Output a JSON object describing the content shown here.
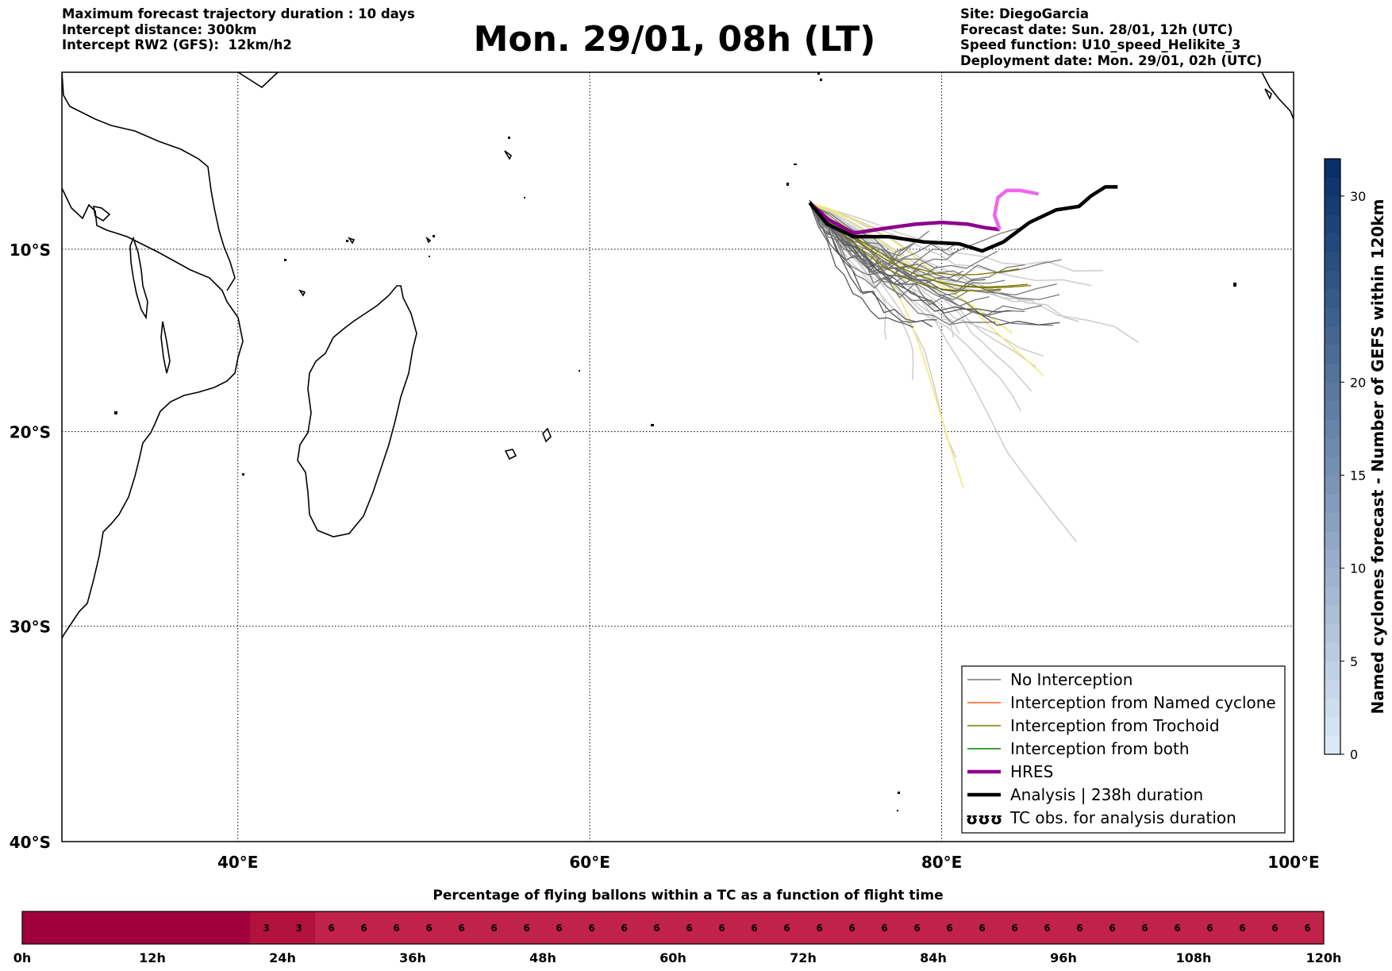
{
  "header": {
    "left": [
      "Maximum forecast trajectory duration : 10 days",
      "Intercept distance: 300km",
      "Intercept RW2 (GFS):  12km/h2"
    ],
    "title": "Mon. 29/01, 08h (LT)",
    "right": [
      "Site: DiegoGarcia",
      "Forecast date: Sun. 28/01, 12h (UTC)",
      "Speed function: U10_speed_Helikite_3",
      "Deployment date: Mon. 29/01, 02h (UTC)"
    ]
  },
  "map": {
    "lon_range": [
      30,
      100
    ],
    "lat_range": [
      -40,
      0
    ],
    "lon_ticks": [
      {
        "value": 40,
        "label": "40°E"
      },
      {
        "value": 60,
        "label": "60°E"
      },
      {
        "value": 80,
        "label": "80°E"
      },
      {
        "value": 100,
        "label": "100°E"
      }
    ],
    "lat_ticks": [
      {
        "value": -10,
        "label": "10°S"
      },
      {
        "value": -20,
        "label": "20°S"
      },
      {
        "value": -30,
        "label": "30°S"
      },
      {
        "value": -40,
        "label": "40°S"
      }
    ],
    "gridlines": "dotted",
    "legend": {
      "position": "lower-right",
      "entries": [
        {
          "label": "No Interception",
          "color": "#777777",
          "style": "thin"
        },
        {
          "label": "Interception from Named cyclone",
          "color": "#ff5a1e",
          "style": "thin"
        },
        {
          "label": "Interception from Trochoid",
          "color": "#7a7a00",
          "style": "thin"
        },
        {
          "label": "Interception from both",
          "color": "#008000",
          "style": "thin"
        },
        {
          "label": "HRES",
          "color": "#8b008b",
          "style": "thick"
        },
        {
          "label": "Analysis | 238h duration",
          "color": "#000000",
          "style": "thick"
        },
        {
          "label": "TC obs. for analysis duration",
          "color": "#000000",
          "style": "symbol",
          "symbol": "ʊʊʊ"
        }
      ]
    }
  },
  "colorbar": {
    "label": "Named cyclones forecast - Number of GEFS within 120km",
    "min": 0,
    "max": 32,
    "ticks": [
      0,
      5,
      10,
      15,
      20,
      30
    ],
    "color_low": "#dbe9f6",
    "color_high": "#08306b"
  },
  "bottom_bar": {
    "title": "Percentage of flying ballons within a TC as a function of flight time",
    "time_ticks": [
      "0h",
      "12h",
      "24h",
      "36h",
      "48h",
      "60h",
      "72h",
      "84h",
      "96h",
      "108h",
      "120h"
    ],
    "cells": [
      0,
      0,
      0,
      0,
      0,
      0,
      0,
      3,
      3,
      6,
      6,
      6,
      6,
      6,
      6,
      6,
      6,
      6,
      6,
      6,
      6,
      6,
      6,
      6,
      6,
      6,
      6,
      6,
      6,
      6,
      6,
      6,
      6,
      6,
      6,
      6,
      6,
      6,
      6,
      6
    ],
    "colors": {
      "0": "#a0003c",
      "3": "#b3123f",
      "6": "#c0224a"
    }
  },
  "chart_data": {
    "type": "map",
    "title": "Mon. 29/01, 08h (LT)",
    "series": [
      {
        "name": "Analysis | 238h duration",
        "points": [
          [
            72.5,
            -7.4
          ],
          [
            73.5,
            -8.6
          ],
          [
            75,
            -9.3
          ],
          [
            77,
            -9.3
          ],
          [
            79,
            -9.6
          ],
          [
            81,
            -9.7
          ],
          [
            82.3,
            -10.1
          ],
          [
            83.5,
            -9.6
          ],
          [
            85,
            -8.5
          ],
          [
            86.5,
            -7.8
          ],
          [
            87.8,
            -7.6
          ],
          [
            88.5,
            -7.0
          ],
          [
            89.3,
            -6.5
          ],
          [
            90,
            -6.5
          ]
        ]
      },
      {
        "name": "HRES",
        "points": [
          [
            72.5,
            -7.4
          ],
          [
            73.5,
            -8.3
          ],
          [
            75,
            -9.1
          ],
          [
            77,
            -8.8
          ],
          [
            78.5,
            -8.6
          ],
          [
            80,
            -8.5
          ],
          [
            81.5,
            -8.6
          ],
          [
            82.5,
            -8.8
          ],
          [
            83.3,
            -8.9
          ]
        ]
      },
      {
        "name": "HRES (continued)",
        "points": [
          [
            83.3,
            -8.9
          ],
          [
            83.0,
            -8.1
          ],
          [
            83.2,
            -7.1
          ],
          [
            83.7,
            -6.7
          ],
          [
            84.5,
            -6.7
          ],
          [
            85.5,
            -6.9
          ]
        ]
      }
    ]
  }
}
